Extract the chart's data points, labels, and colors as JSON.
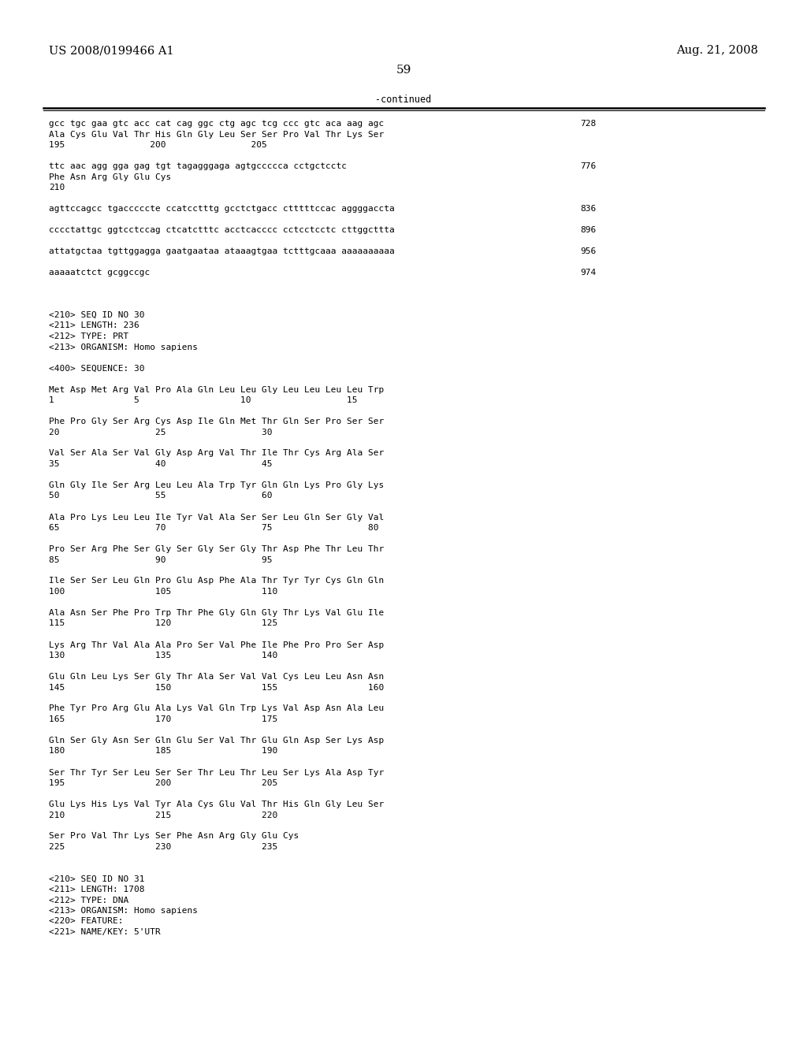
{
  "header_left": "US 2008/0199466 A1",
  "header_right": "Aug. 21, 2008",
  "page_number": "59",
  "continued_label": "-continued",
  "background_color": "#ffffff",
  "text_color": "#000000",
  "lines": [
    {
      "text": "gcc tgc gaa gtc acc cat cag ggc ctg agc tcg ccc gtc aca aag agc",
      "num": "728"
    },
    {
      "text": "Ala Cys Glu Val Thr His Gln Gly Leu Ser Ser Pro Val Thr Lys Ser",
      "num": ""
    },
    {
      "text": "195                200                205",
      "num": ""
    },
    {
      "text": "",
      "num": ""
    },
    {
      "text": "ttc aac agg gga gag tgt tagagggaga agtgccccca cctgctcctc",
      "num": "776"
    },
    {
      "text": "Phe Asn Arg Gly Glu Cys",
      "num": ""
    },
    {
      "text": "210",
      "num": ""
    },
    {
      "text": "",
      "num": ""
    },
    {
      "text": "agttccagcc tgacccccte ccatcctttg gcctctgacc ctttttccac aggggaccta",
      "num": "836"
    },
    {
      "text": "",
      "num": ""
    },
    {
      "text": "cccctattgc ggtcctccag ctcatctttc acctcacccc cctcctcctc cttggcttta",
      "num": "896"
    },
    {
      "text": "",
      "num": ""
    },
    {
      "text": "attatgctaa tgttggagga gaatgaataa ataaagtgaa tctttgcaaa aaaaaaaaaa",
      "num": "956"
    },
    {
      "text": "",
      "num": ""
    },
    {
      "text": "aaaaatctct gcggccgc",
      "num": "974"
    },
    {
      "text": "",
      "num": ""
    },
    {
      "text": "",
      "num": ""
    },
    {
      "text": "",
      "num": ""
    },
    {
      "text": "<210> SEQ ID NO 30",
      "num": ""
    },
    {
      "text": "<211> LENGTH: 236",
      "num": ""
    },
    {
      "text": "<212> TYPE: PRT",
      "num": ""
    },
    {
      "text": "<213> ORGANISM: Homo sapiens",
      "num": ""
    },
    {
      "text": "",
      "num": ""
    },
    {
      "text": "<400> SEQUENCE: 30",
      "num": ""
    },
    {
      "text": "",
      "num": ""
    },
    {
      "text": "Met Asp Met Arg Val Pro Ala Gln Leu Leu Gly Leu Leu Leu Leu Trp",
      "num": ""
    },
    {
      "text": "1               5                   10                  15",
      "num": ""
    },
    {
      "text": "",
      "num": ""
    },
    {
      "text": "Phe Pro Gly Ser Arg Cys Asp Ile Gln Met Thr Gln Ser Pro Ser Ser",
      "num": ""
    },
    {
      "text": "20                  25                  30",
      "num": ""
    },
    {
      "text": "",
      "num": ""
    },
    {
      "text": "Val Ser Ala Ser Val Gly Asp Arg Val Thr Ile Thr Cys Arg Ala Ser",
      "num": ""
    },
    {
      "text": "35                  40                  45",
      "num": ""
    },
    {
      "text": "",
      "num": ""
    },
    {
      "text": "Gln Gly Ile Ser Arg Leu Leu Ala Trp Tyr Gln Gln Lys Pro Gly Lys",
      "num": ""
    },
    {
      "text": "50                  55                  60",
      "num": ""
    },
    {
      "text": "",
      "num": ""
    },
    {
      "text": "Ala Pro Lys Leu Leu Ile Tyr Val Ala Ser Ser Leu Gln Ser Gly Val",
      "num": ""
    },
    {
      "text": "65                  70                  75                  80",
      "num": ""
    },
    {
      "text": "",
      "num": ""
    },
    {
      "text": "Pro Ser Arg Phe Ser Gly Ser Gly Ser Gly Thr Asp Phe Thr Leu Thr",
      "num": ""
    },
    {
      "text": "85                  90                  95",
      "num": ""
    },
    {
      "text": "",
      "num": ""
    },
    {
      "text": "Ile Ser Ser Leu Gln Pro Glu Asp Phe Ala Thr Tyr Tyr Cys Gln Gln",
      "num": ""
    },
    {
      "text": "100                 105                 110",
      "num": ""
    },
    {
      "text": "",
      "num": ""
    },
    {
      "text": "Ala Asn Ser Phe Pro Trp Thr Phe Gly Gln Gly Thr Lys Val Glu Ile",
      "num": ""
    },
    {
      "text": "115                 120                 125",
      "num": ""
    },
    {
      "text": "",
      "num": ""
    },
    {
      "text": "Lys Arg Thr Val Ala Ala Pro Ser Val Phe Ile Phe Pro Pro Ser Asp",
      "num": ""
    },
    {
      "text": "130                 135                 140",
      "num": ""
    },
    {
      "text": "",
      "num": ""
    },
    {
      "text": "Glu Gln Leu Lys Ser Gly Thr Ala Ser Val Val Cys Leu Leu Asn Asn",
      "num": ""
    },
    {
      "text": "145                 150                 155                 160",
      "num": ""
    },
    {
      "text": "",
      "num": ""
    },
    {
      "text": "Phe Tyr Pro Arg Glu Ala Lys Val Gln Trp Lys Val Asp Asn Ala Leu",
      "num": ""
    },
    {
      "text": "165                 170                 175",
      "num": ""
    },
    {
      "text": "",
      "num": ""
    },
    {
      "text": "Gln Ser Gly Asn Ser Gln Glu Ser Val Thr Glu Gln Asp Ser Lys Asp",
      "num": ""
    },
    {
      "text": "180                 185                 190",
      "num": ""
    },
    {
      "text": "",
      "num": ""
    },
    {
      "text": "Ser Thr Tyr Ser Leu Ser Ser Thr Leu Thr Leu Ser Lys Ala Asp Tyr",
      "num": ""
    },
    {
      "text": "195                 200                 205",
      "num": ""
    },
    {
      "text": "",
      "num": ""
    },
    {
      "text": "Glu Lys His Lys Val Tyr Ala Cys Glu Val Thr His Gln Gly Leu Ser",
      "num": ""
    },
    {
      "text": "210                 215                 220",
      "num": ""
    },
    {
      "text": "",
      "num": ""
    },
    {
      "text": "Ser Pro Val Thr Lys Ser Phe Asn Arg Gly Glu Cys",
      "num": ""
    },
    {
      "text": "225                 230                 235",
      "num": ""
    },
    {
      "text": "",
      "num": ""
    },
    {
      "text": "",
      "num": ""
    },
    {
      "text": "<210> SEQ ID NO 31",
      "num": ""
    },
    {
      "text": "<211> LENGTH: 1708",
      "num": ""
    },
    {
      "text": "<212> TYPE: DNA",
      "num": ""
    },
    {
      "text": "<213> ORGANISM: Homo sapiens",
      "num": ""
    },
    {
      "text": "<220> FEATURE:",
      "num": ""
    },
    {
      "text": "<221> NAME/KEY: 5'UTR",
      "num": ""
    }
  ]
}
